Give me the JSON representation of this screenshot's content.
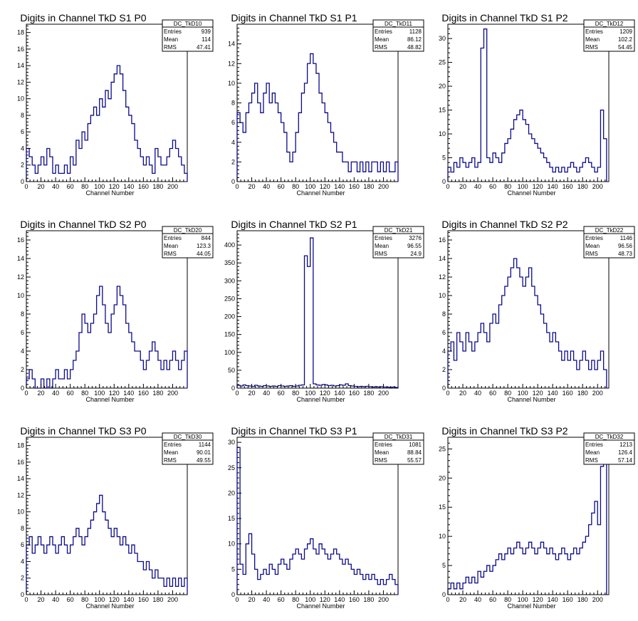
{
  "chart_data": [
    {
      "type": "bar",
      "title": "Digits in Channel TkD S1 P0",
      "xlabel": "Channel Number",
      "xlim": [
        0,
        220
      ],
      "ylim": [
        0,
        19
      ],
      "xticks": [
        0,
        20,
        40,
        60,
        80,
        100,
        120,
        140,
        160,
        180,
        200
      ],
      "yticks": [
        0,
        2,
        4,
        6,
        8,
        10,
        12,
        14,
        16,
        18
      ],
      "stats": {
        "name": "DC_TkD10",
        "entries": "939",
        "mean": "114",
        "rms": "47.41"
      },
      "x_centers": [
        2,
        6,
        10,
        14,
        18,
        22,
        26,
        30,
        34,
        38,
        42,
        46,
        50,
        54,
        58,
        62,
        66,
        70,
        74,
        78,
        82,
        86,
        90,
        94,
        98,
        102,
        106,
        110,
        114,
        118,
        122,
        126,
        130,
        134,
        138,
        142,
        146,
        150,
        154,
        158,
        162,
        166,
        170,
        174,
        178,
        182,
        186,
        190,
        194,
        198,
        202,
        206,
        210,
        214,
        218
      ],
      "values": [
        4,
        3,
        2,
        1,
        2,
        3,
        2,
        4,
        3,
        1,
        2,
        1,
        1,
        2,
        1,
        3,
        2,
        5,
        4,
        6,
        5,
        7,
        8,
        9,
        8,
        10,
        9,
        11,
        10,
        12,
        13,
        14,
        13,
        11,
        9,
        8,
        7,
        5,
        4,
        3,
        2,
        3,
        2,
        1,
        4,
        3,
        2,
        2,
        3,
        4,
        5,
        4,
        3,
        2,
        1
      ]
    },
    {
      "type": "bar",
      "title": "Digits in Channel TkD S1 P1",
      "xlabel": "Channel Number",
      "xlim": [
        0,
        220
      ],
      "ylim": [
        0,
        16
      ],
      "xticks": [
        0,
        20,
        40,
        60,
        80,
        100,
        120,
        140,
        160,
        180,
        200
      ],
      "yticks": [
        0,
        2,
        4,
        6,
        8,
        10,
        12,
        14
      ],
      "stats": {
        "name": "DC_TkD11",
        "entries": "1128",
        "mean": "86.12",
        "rms": "48.82"
      },
      "x_centers": [
        2,
        6,
        10,
        14,
        18,
        22,
        26,
        30,
        34,
        38,
        42,
        46,
        50,
        54,
        58,
        62,
        66,
        70,
        74,
        78,
        82,
        86,
        90,
        94,
        98,
        102,
        106,
        110,
        114,
        118,
        122,
        126,
        130,
        134,
        138,
        142,
        146,
        150,
        154,
        158,
        162,
        166,
        170,
        174,
        178,
        182,
        186,
        190,
        194,
        198,
        202,
        206,
        210,
        214,
        218
      ],
      "values": [
        7,
        6,
        5,
        7,
        8,
        9,
        10,
        8,
        7,
        9,
        10,
        8,
        9,
        8,
        7,
        6,
        5,
        3,
        2,
        3,
        5,
        7,
        9,
        10,
        12,
        13,
        12,
        11,
        9,
        8,
        7,
        6,
        5,
        4,
        3,
        3,
        2,
        2,
        1,
        2,
        2,
        1,
        2,
        1,
        2,
        1,
        2,
        2,
        1,
        2,
        1,
        2,
        1,
        1,
        2
      ]
    },
    {
      "type": "bar",
      "title": "Digits in Channel TkD S1 P2",
      "xlabel": "Channel Number",
      "xlim": [
        0,
        215
      ],
      "ylim": [
        0,
        33
      ],
      "xticks": [
        0,
        20,
        40,
        60,
        80,
        100,
        120,
        140,
        160,
        180,
        200
      ],
      "yticks": [
        0,
        5,
        10,
        15,
        20,
        25,
        30
      ],
      "stats": {
        "name": "DC_TkD12",
        "entries": "1209",
        "mean": "102.2",
        "rms": "54.45"
      },
      "x_centers": [
        2,
        6,
        10,
        14,
        18,
        22,
        26,
        30,
        34,
        38,
        42,
        46,
        50,
        54,
        58,
        62,
        66,
        70,
        74,
        78,
        82,
        86,
        90,
        94,
        98,
        102,
        106,
        110,
        114,
        118,
        122,
        126,
        130,
        134,
        138,
        142,
        146,
        150,
        154,
        158,
        162,
        166,
        170,
        174,
        178,
        182,
        186,
        190,
        194,
        198,
        202,
        206,
        210
      ],
      "values": [
        3,
        2,
        4,
        3,
        5,
        4,
        3,
        4,
        5,
        3,
        4,
        28,
        32,
        5,
        4,
        6,
        5,
        4,
        6,
        8,
        9,
        11,
        13,
        14,
        15,
        13,
        12,
        10,
        9,
        8,
        7,
        6,
        5,
        4,
        3,
        2,
        3,
        2,
        3,
        2,
        3,
        4,
        3,
        2,
        3,
        4,
        5,
        4,
        3,
        2,
        3,
        15,
        9
      ]
    },
    {
      "type": "bar",
      "title": "Digits in Channel TkD S2 P0",
      "xlabel": "Channel Number",
      "xlim": [
        0,
        220
      ],
      "ylim": [
        0,
        17
      ],
      "xticks": [
        0,
        20,
        40,
        60,
        80,
        100,
        120,
        140,
        160,
        180,
        200
      ],
      "yticks": [
        0,
        2,
        4,
        6,
        8,
        10,
        12,
        14,
        16
      ],
      "stats": {
        "name": "DC_TkD20",
        "entries": "844",
        "mean": "123.3",
        "rms": "44.05"
      },
      "x_centers": [
        2,
        6,
        10,
        14,
        18,
        22,
        26,
        30,
        34,
        38,
        42,
        46,
        50,
        54,
        58,
        62,
        66,
        70,
        74,
        78,
        82,
        86,
        90,
        94,
        98,
        102,
        106,
        110,
        114,
        118,
        122,
        126,
        130,
        134,
        138,
        142,
        146,
        150,
        154,
        158,
        162,
        166,
        170,
        174,
        178,
        182,
        186,
        190,
        194,
        198,
        202,
        206,
        210,
        214,
        218
      ],
      "values": [
        1,
        2,
        1,
        0,
        0,
        1,
        0,
        1,
        0,
        1,
        2,
        1,
        1,
        2,
        1,
        2,
        3,
        4,
        6,
        8,
        7,
        6,
        7,
        8,
        10,
        11,
        9,
        7,
        6,
        8,
        9,
        11,
        10,
        9,
        7,
        6,
        5,
        4,
        4,
        3,
        2,
        3,
        4,
        5,
        4,
        3,
        2,
        3,
        2,
        3,
        4,
        3,
        2,
        3,
        4
      ]
    },
    {
      "type": "bar",
      "title": "Digits in Channel TkD S2 P1",
      "xlabel": "Channel Number",
      "xlim": [
        0,
        220
      ],
      "ylim": [
        0,
        440
      ],
      "xticks": [
        0,
        20,
        40,
        60,
        80,
        100,
        120,
        140,
        160,
        180,
        200
      ],
      "yticks": [
        0,
        50,
        100,
        150,
        200,
        250,
        300,
        350,
        400
      ],
      "stats": {
        "name": "DC_TkD21",
        "entries": "3276",
        "mean": "96.55",
        "rms": "24.9"
      },
      "x_centers": [
        2,
        6,
        10,
        14,
        18,
        22,
        26,
        30,
        34,
        38,
        42,
        46,
        50,
        54,
        58,
        62,
        66,
        70,
        74,
        78,
        82,
        86,
        90,
        94,
        98,
        102,
        106,
        110,
        114,
        118,
        122,
        126,
        130,
        134,
        138,
        142,
        146,
        150,
        154,
        158,
        162,
        166,
        170,
        174,
        178,
        182,
        186,
        190,
        194,
        198,
        202,
        206,
        210,
        214,
        218
      ],
      "values": [
        8,
        6,
        9,
        7,
        6,
        5,
        8,
        6,
        5,
        7,
        6,
        5,
        6,
        5,
        7,
        6,
        5,
        6,
        7,
        5,
        6,
        8,
        9,
        370,
        340,
        420,
        12,
        9,
        8,
        10,
        9,
        7,
        8,
        6,
        7,
        9,
        8,
        12,
        7,
        6,
        5,
        4,
        5,
        4,
        5,
        4,
        3,
        4,
        3,
        4,
        3,
        3,
        2,
        3,
        2
      ]
    },
    {
      "type": "bar",
      "title": "Digits in Channel TkD S2 P2",
      "xlabel": "Channel Number",
      "xlim": [
        0,
        215
      ],
      "ylim": [
        0,
        17
      ],
      "xticks": [
        0,
        20,
        40,
        60,
        80,
        100,
        120,
        140,
        160,
        180,
        200
      ],
      "yticks": [
        0,
        2,
        4,
        6,
        8,
        10,
        12,
        14,
        16
      ],
      "stats": {
        "name": "DC_TkD22",
        "entries": "1146",
        "mean": "96.56",
        "rms": "48.73"
      },
      "x_centers": [
        2,
        6,
        10,
        14,
        18,
        22,
        26,
        30,
        34,
        38,
        42,
        46,
        50,
        54,
        58,
        62,
        66,
        70,
        74,
        78,
        82,
        86,
        90,
        94,
        98,
        102,
        106,
        110,
        114,
        118,
        122,
        126,
        130,
        134,
        138,
        142,
        146,
        150,
        154,
        158,
        162,
        166,
        170,
        174,
        178,
        182,
        186,
        190,
        194,
        198,
        202,
        206,
        210
      ],
      "values": [
        4,
        5,
        3,
        6,
        5,
        4,
        6,
        5,
        4,
        5,
        6,
        7,
        6,
        5,
        7,
        8,
        7,
        9,
        10,
        11,
        12,
        13,
        14,
        13,
        12,
        11,
        12,
        13,
        11,
        10,
        9,
        8,
        7,
        6,
        5,
        6,
        5,
        4,
        3,
        4,
        3,
        4,
        3,
        2,
        3,
        4,
        3,
        2,
        3,
        2,
        3,
        4,
        2
      ]
    },
    {
      "type": "bar",
      "title": "Digits in Channel TkD S3 P0",
      "xlabel": "Channel Number",
      "xlim": [
        0,
        220
      ],
      "ylim": [
        0,
        19
      ],
      "xticks": [
        0,
        20,
        40,
        60,
        80,
        100,
        120,
        140,
        160,
        180,
        200
      ],
      "yticks": [
        0,
        2,
        4,
        6,
        8,
        10,
        12,
        14,
        16,
        18
      ],
      "stats": {
        "name": "DC_TkD30",
        "entries": "1144",
        "mean": "90.01",
        "rms": "49.55"
      },
      "x_centers": [
        2,
        6,
        10,
        14,
        18,
        22,
        26,
        30,
        34,
        38,
        42,
        46,
        50,
        54,
        58,
        62,
        66,
        70,
        74,
        78,
        82,
        86,
        90,
        94,
        98,
        102,
        106,
        110,
        114,
        118,
        122,
        126,
        130,
        134,
        138,
        142,
        146,
        150,
        154,
        158,
        162,
        166,
        170,
        174,
        178,
        182,
        186,
        190,
        194,
        198,
        202,
        206,
        210,
        214,
        218
      ],
      "values": [
        6,
        7,
        5,
        6,
        7,
        6,
        5,
        6,
        7,
        6,
        5,
        6,
        7,
        6,
        5,
        6,
        7,
        8,
        7,
        6,
        7,
        8,
        9,
        10,
        11,
        12,
        10,
        9,
        8,
        7,
        8,
        7,
        6,
        7,
        6,
        5,
        6,
        5,
        4,
        4,
        3,
        4,
        3,
        2,
        3,
        2,
        2,
        1,
        2,
        1,
        2,
        1,
        2,
        1,
        2
      ]
    },
    {
      "type": "bar",
      "title": "Digits in Channel TkD S3 P1",
      "xlabel": "Channel Number",
      "xlim": [
        0,
        220
      ],
      "ylim": [
        0,
        31
      ],
      "xticks": [
        0,
        20,
        40,
        60,
        80,
        100,
        120,
        140,
        160,
        180,
        200
      ],
      "yticks": [
        0,
        5,
        10,
        15,
        20,
        25,
        30
      ],
      "stats": {
        "name": "DC_TkD31",
        "entries": "1081",
        "mean": "88.84",
        "rms": "55.57"
      },
      "x_centers": [
        2,
        6,
        10,
        14,
        18,
        22,
        26,
        30,
        34,
        38,
        42,
        46,
        50,
        54,
        58,
        62,
        66,
        70,
        74,
        78,
        82,
        86,
        90,
        94,
        98,
        102,
        106,
        110,
        114,
        118,
        122,
        126,
        130,
        134,
        138,
        142,
        146,
        150,
        154,
        158,
        162,
        166,
        170,
        174,
        178,
        182,
        186,
        190,
        194,
        198,
        202,
        206,
        210,
        214,
        218
      ],
      "values": [
        29,
        6,
        4,
        10,
        12,
        8,
        5,
        3,
        4,
        5,
        4,
        6,
        5,
        4,
        6,
        7,
        6,
        5,
        7,
        8,
        9,
        8,
        7,
        9,
        10,
        11,
        9,
        8,
        10,
        9,
        8,
        7,
        8,
        9,
        8,
        7,
        6,
        7,
        6,
        5,
        4,
        5,
        4,
        3,
        4,
        3,
        4,
        3,
        2,
        3,
        2,
        3,
        4,
        3,
        2
      ]
    },
    {
      "type": "bar",
      "title": "Digits in Channel TkD S3 P2",
      "xlabel": "Channel Number",
      "xlim": [
        0,
        215
      ],
      "ylim": [
        0,
        27
      ],
      "xticks": [
        0,
        20,
        40,
        60,
        80,
        100,
        120,
        140,
        160,
        180,
        200
      ],
      "yticks": [
        0,
        5,
        10,
        15,
        20,
        25
      ],
      "stats": {
        "name": "DC_TkD32",
        "entries": "1213",
        "mean": "126.4",
        "rms": "57.14"
      },
      "x_centers": [
        2,
        6,
        10,
        14,
        18,
        22,
        26,
        30,
        34,
        38,
        42,
        46,
        50,
        54,
        58,
        62,
        66,
        70,
        74,
        78,
        82,
        86,
        90,
        94,
        98,
        102,
        106,
        110,
        114,
        118,
        122,
        126,
        130,
        134,
        138,
        142,
        146,
        150,
        154,
        158,
        162,
        166,
        170,
        174,
        178,
        182,
        186,
        190,
        194,
        198,
        202,
        206,
        210
      ],
      "values": [
        1,
        2,
        1,
        2,
        1,
        2,
        3,
        2,
        3,
        2,
        4,
        3,
        4,
        5,
        4,
        5,
        6,
        7,
        6,
        7,
        8,
        7,
        8,
        9,
        8,
        7,
        8,
        9,
        8,
        7,
        8,
        9,
        8,
        7,
        8,
        7,
        6,
        7,
        8,
        7,
        6,
        7,
        8,
        7,
        8,
        9,
        10,
        12,
        14,
        16,
        12,
        22,
        26
      ]
    }
  ]
}
